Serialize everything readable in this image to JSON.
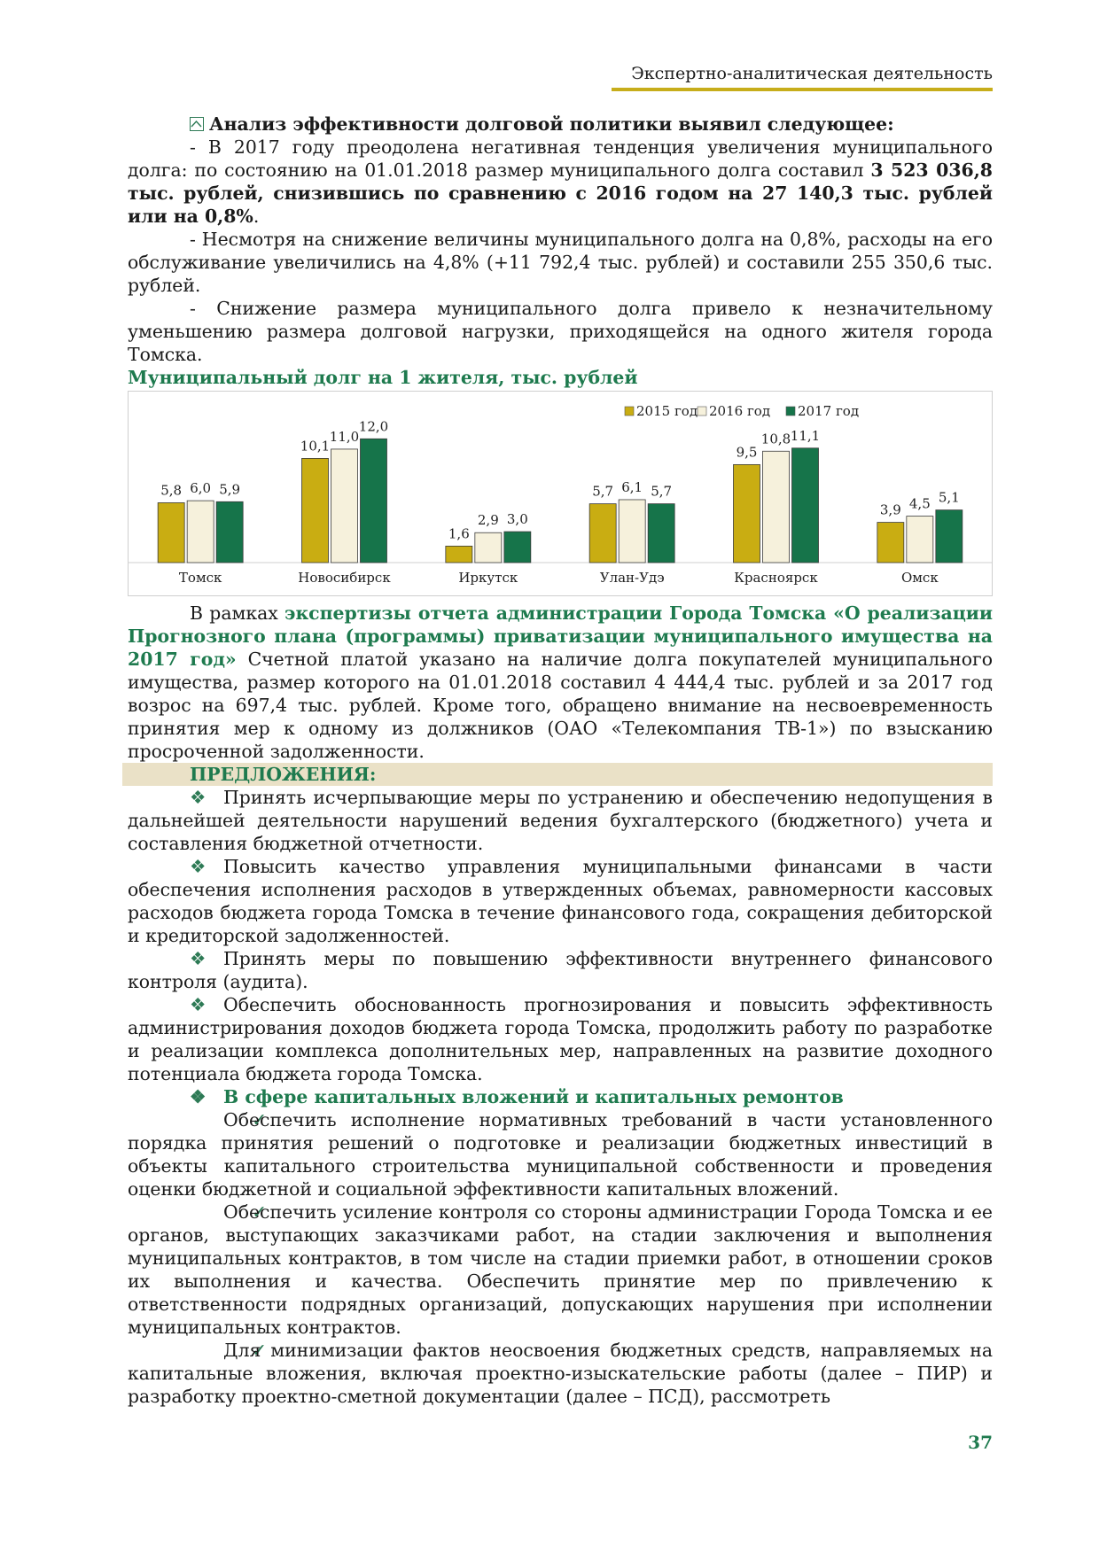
{
  "header": {
    "title": "Экспертно-аналитическая деятельность"
  },
  "analysis": {
    "heading": "Анализ эффективности долговой политики выявил следующее:",
    "p1_a": "- В 2017 году преодолена негативная тенденция увеличения муниципального долга: по состоянию на 01.01.2018 размер муниципального долга составил ",
    "p1_b": "3 523 036,8 тыс. рублей, снизившись по сравнению с 2016 годом на 27 140,3 тыс. рублей или на 0,8%",
    "p1_c": ".",
    "p2": "- Несмотря на снижение величины муниципального долга на 0,8%, расходы на его обслуживание увеличились на 4,8% (+11 792,4 тыс. рублей) и составили 255 350,6 тыс. рублей.",
    "p3": "- Снижение размера муниципального долга привело к незначительному уменьшению размера долговой нагрузки, приходящейся на одного жителя города Томска."
  },
  "chart_title": "Муниципальный долг на 1 жителя, тыс. рублей",
  "chart_data": {
    "type": "bar",
    "categories": [
      "Томск",
      "Новосибирск",
      "Иркутск",
      "Улан-Удэ",
      "Красноярск",
      "Омск"
    ],
    "series": [
      {
        "name": "2015 год",
        "values": [
          5.8,
          10.1,
          1.6,
          5.7,
          9.5,
          3.9
        ],
        "labels": [
          "5,8",
          "10,1",
          "1,6",
          "5,7",
          "9,5",
          "3,9"
        ],
        "color": "#c9ad12"
      },
      {
        "name": "2016 год",
        "values": [
          6.0,
          11.0,
          2.9,
          6.1,
          10.8,
          4.5
        ],
        "labels": [
          "6,0",
          "11,0",
          "2,9",
          "6,1",
          "10,8",
          "4,5"
        ],
        "color": "#f6f1dc"
      },
      {
        "name": "2017 год",
        "values": [
          5.9,
          12.0,
          3.0,
          5.7,
          11.1,
          5.1
        ],
        "labels": [
          "5,9",
          "12,0",
          "3,0",
          "5,7",
          "11,1",
          "5,1"
        ],
        "color": "#16744a"
      }
    ],
    "ylim": [
      0,
      14
    ],
    "legend": "top-right",
    "grid": false
  },
  "expertise": {
    "a": "В рамках ",
    "b": "экспертизы отчета администрации Города Томска «О реализации Прогнозного плана (программы) приватизации муниципального имущества на 2017 год»",
    "c": " Счетной платой указано на наличие долга покупателей муниципального имущества, размер которого на 01.01.2018 составил 4 444,4 тыс. рублей и за 2017 год возрос на 697,4 тыс. рублей. Кроме того, обращено внимание на несвоевременность принятия мер к одному из должников (ОАО «Телекомпания ТВ-1») по взысканию просроченной задолженности."
  },
  "proposals": {
    "heading": "ПРЕДЛОЖЕНИЯ:",
    "bullet_glyph": "❖",
    "check_glyph": "✓",
    "items": [
      "Принять исчерпывающие меры по устранению и обеспечению недопущения в дальнейшей деятельности нарушений ведения бухгалтерского (бюджетного) учета и составления бюджетной отчетности.",
      "Повысить качество управления муниципальными финансами в части обеспечения исполнения расходов в утвержденных объемах, равномерности кассовых расходов бюджета города Томска в течение финансового года, сокращения дебиторской и кредиторской задолженностей.",
      "Принять меры по повышению эффективности внутреннего финансового контроля (аудита).",
      "Обеспечить обоснованность прогнозирования и повысить эффективность администрирования доходов бюджета города Томска, продолжить работу по разработке и реализации комплекса дополнительных мер, направленных на развитие доходного потенциала бюджета города Томска."
    ],
    "capital_heading": "В сфере капитальных вложений и капитальных ремонтов",
    "capital_items": [
      "Обеспечить исполнение нормативных требований в части установленного порядка принятия решений о подготовке и реализации бюджетных инвестиций в объекты капитального строительства муниципальной собственности и проведения оценки бюджетной и социальной эффективности капитальных вложений.",
      "Обеспечить усиление контроля со стороны администрации Города Томска и ее органов, выступающих заказчиками работ, на стадии заключения и выполнения муниципальных контрактов, в том числе на стадии приемки работ, в отношении сроков их выполнения и качества. Обеспечить принятие мер по привлечению к ответственности подрядных организаций, допускающих нарушения при исполнении муниципальных контрактов.",
      "Для минимизации фактов неосвоения бюджетных средств, направляемых на капитальные вложения, включая проектно-изыскательские работы (далее – ПИР) и разработку проектно-сметной документации (далее – ПСД), рассмотреть"
    ]
  },
  "page_number": "37"
}
